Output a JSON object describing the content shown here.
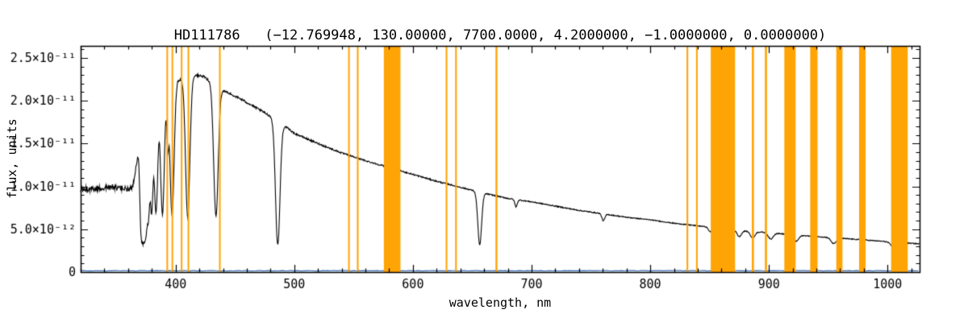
{
  "page": {
    "background": "#ffffff"
  },
  "chart_data": {
    "type": "line",
    "title": "HD111786   (−12.769948, 130.00000, 7700.0000, 4.2000000, −1.0000000, 0.0000000)",
    "xlabel": "wavelength, nm",
    "ylabel": "flux, units",
    "xlim": [
      320,
      1027
    ],
    "ylim": [
      0,
      2.64e-11
    ],
    "x_major_ticks": [
      400,
      500,
      600,
      700,
      800,
      900,
      1000
    ],
    "x_minor_step": 20,
    "y_major_ticks": [
      0,
      5e-12,
      1e-11,
      1.5e-11,
      2e-11,
      2.5e-11
    ],
    "y_tick_labels": [
      "0",
      "5.0×10⁻¹²",
      "1.0×10⁻¹¹",
      "1.5×10⁻¹¹",
      "2.0×10⁻¹¹",
      "2.5×10⁻¹¹"
    ],
    "y_minor_step": 1e-12,
    "grid": false,
    "legend": "none",
    "colors": {
      "spectrum": "#000000",
      "baseline": "#3b6fb6",
      "bands": "#ffa405",
      "axis": "#000000",
      "text": "#000000"
    },
    "series": [
      {
        "name": "stellar-spectrum",
        "color": "#000000"
      },
      {
        "name": "zero-baseline",
        "color": "#3b6fb6"
      }
    ],
    "baseline_value": 1.6e-13,
    "continuum_anchors": [
      [
        320,
        9.6e-12
      ],
      [
        330,
        9.7e-12
      ],
      [
        345,
        9.9e-12
      ],
      [
        360,
        9.7e-12
      ],
      [
        364,
        1e-11
      ],
      [
        368,
        1.35e-11
      ],
      [
        372,
        1.7e-11
      ],
      [
        376,
        1.95e-11
      ],
      [
        382,
        2.05e-11
      ],
      [
        388,
        2.1e-11
      ],
      [
        394,
        2.18e-11
      ],
      [
        400,
        2.24e-11
      ],
      [
        408,
        2.26e-11
      ],
      [
        416,
        2.3e-11
      ],
      [
        424,
        2.28e-11
      ],
      [
        440,
        2.12e-11
      ],
      [
        455,
        2.02e-11
      ],
      [
        470,
        1.9e-11
      ],
      [
        485,
        1.78e-11
      ],
      [
        500,
        1.62e-11
      ],
      [
        520,
        1.5e-11
      ],
      [
        540,
        1.39e-11
      ],
      [
        560,
        1.3e-11
      ],
      [
        580,
        1.22e-11
      ],
      [
        600,
        1.14e-11
      ],
      [
        620,
        1.06e-11
      ],
      [
        640,
        9.9e-12
      ],
      [
        660,
        9.2e-12
      ],
      [
        680,
        8.6e-12
      ],
      [
        700,
        8.2e-12
      ],
      [
        720,
        7.7e-12
      ],
      [
        740,
        7.2e-12
      ],
      [
        760,
        6.8e-12
      ],
      [
        780,
        6.4e-12
      ],
      [
        800,
        6.1e-12
      ],
      [
        820,
        5.7e-12
      ],
      [
        840,
        5.4e-12
      ],
      [
        860,
        5.1e-12
      ],
      [
        880,
        4.8e-12
      ],
      [
        900,
        4.6e-12
      ],
      [
        920,
        4.35e-12
      ],
      [
        940,
        4.15e-12
      ],
      [
        960,
        3.95e-12
      ],
      [
        980,
        3.75e-12
      ],
      [
        1000,
        3.55e-12
      ],
      [
        1015,
        3.4e-12
      ],
      [
        1027,
        3.3e-12
      ]
    ],
    "absorption_lines": [
      {
        "center": 370.5,
        "depth": 0.4,
        "width": 0.9
      },
      {
        "center": 371.2,
        "depth": 0.45,
        "width": 0.9
      },
      {
        "center": 372.0,
        "depth": 0.5,
        "width": 0.9
      },
      {
        "center": 373.0,
        "depth": 0.54,
        "width": 1.0
      },
      {
        "center": 374.0,
        "depth": 0.58,
        "width": 1.0
      },
      {
        "center": 375.3,
        "depth": 0.6,
        "width": 1.1
      },
      {
        "center": 377.1,
        "depth": 0.62,
        "width": 1.2
      },
      {
        "center": 379.8,
        "depth": 0.64,
        "width": 1.3
      },
      {
        "center": 383.5,
        "depth": 0.66,
        "width": 1.5
      },
      {
        "center": 388.9,
        "depth": 0.68,
        "width": 1.6
      },
      {
        "center": 393.4,
        "depth": 0.3,
        "width": 0.8
      },
      {
        "center": 397.0,
        "depth": 0.7,
        "width": 1.7
      },
      {
        "center": 410.2,
        "depth": 0.72,
        "width": 1.8
      },
      {
        "center": 434.0,
        "depth": 0.7,
        "width": 1.9
      },
      {
        "center": 486.1,
        "depth": 0.82,
        "width": 1.9
      },
      {
        "center": 656.3,
        "depth": 0.66,
        "width": 1.6
      },
      {
        "center": 686.9,
        "depth": 0.1,
        "width": 1.0
      },
      {
        "center": 760.5,
        "depth": 0.12,
        "width": 1.2
      },
      {
        "center": 850.5,
        "depth": 0.1,
        "width": 1.5
      },
      {
        "center": 854.8,
        "depth": 0.12,
        "width": 1.5
      },
      {
        "center": 860.0,
        "depth": 0.13,
        "width": 1.6
      },
      {
        "center": 866.5,
        "depth": 0.14,
        "width": 1.7
      },
      {
        "center": 875.0,
        "depth": 0.15,
        "width": 1.8
      },
      {
        "center": 886.3,
        "depth": 0.16,
        "width": 1.9
      },
      {
        "center": 901.5,
        "depth": 0.16,
        "width": 2.0
      },
      {
        "center": 922.9,
        "depth": 0.17,
        "width": 2.1
      },
      {
        "center": 954.6,
        "depth": 0.17,
        "width": 2.2
      },
      {
        "center": 1004.9,
        "depth": 0.17,
        "width": 2.3
      }
    ],
    "noise_anchors": [
      [
        320,
        3.3e-13
      ],
      [
        362,
        3.3e-13
      ],
      [
        366,
        2.2e-13
      ],
      [
        400,
        1.6e-13
      ],
      [
        500,
        1e-13
      ],
      [
        650,
        7e-14
      ],
      [
        800,
        5e-14
      ],
      [
        1027,
        5e-14
      ]
    ],
    "masked_bands": [
      [
        392.3,
        393.3
      ],
      [
        396.6,
        397.6
      ],
      [
        404.4,
        405.4
      ],
      [
        410.1,
        411.1
      ],
      [
        436.6,
        437.9
      ],
      [
        545.4,
        546.6
      ],
      [
        552.8,
        554.2
      ],
      [
        575.5,
        589.5
      ],
      [
        627.6,
        629.0
      ],
      [
        635.6,
        637.0
      ],
      [
        669.6,
        671.2
      ],
      [
        830.6,
        832.0
      ],
      [
        838.6,
        840.0
      ],
      [
        851.0,
        871.5
      ],
      [
        885.6,
        887.4
      ],
      [
        896.6,
        898.4
      ],
      [
        913.0,
        922.5
      ],
      [
        934.8,
        941.0
      ],
      [
        956.8,
        962.0
      ],
      [
        976.0,
        981.5
      ],
      [
        1003.0,
        1017.0
      ]
    ]
  }
}
